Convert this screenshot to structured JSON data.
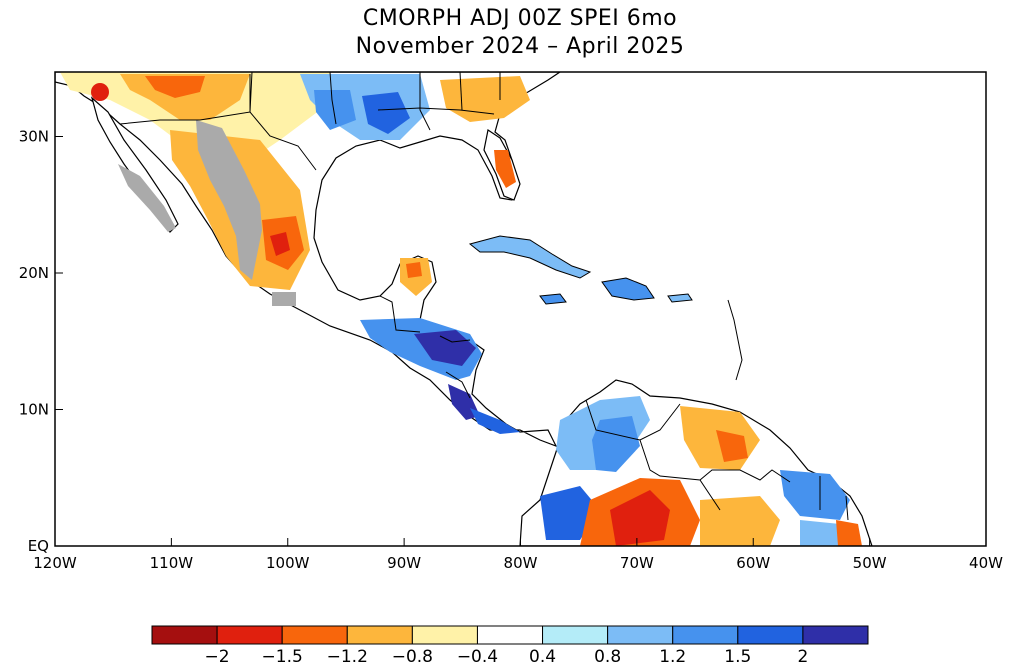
{
  "title_line1": "CMORPH ADJ 00Z SPEI 6mo",
  "title_line2": "November 2024 - April 2025",
  "lon_labels": [
    "120W",
    "110W",
    "100W",
    "90W",
    "80W",
    "70W",
    "60W",
    "50W",
    "40W"
  ],
  "lat_labels": [
    "EQ",
    "10N",
    "20N",
    "30N"
  ],
  "colorbar": {
    "colors": [
      "#a50f0f",
      "#e0200e",
      "#f8660c",
      "#fdb63c",
      "#fff2a8",
      "#ffffff",
      "#b4ecf8",
      "#7cbcf6",
      "#4692ee",
      "#2163e0",
      "#2f2fa8"
    ],
    "labels": [
      "-2",
      "-1.5",
      "-1.2",
      "-0.8",
      "-0.4",
      "0.4",
      "0.8",
      "1.2",
      "1.5",
      "2"
    ]
  },
  "colors": {
    "land_dry_strong": "#e0200e",
    "land_dry": "#fdb63c",
    "land_wet": "#4692ee",
    "land_wet_strong": "#2f2fa8",
    "missing": "#aaaaaa"
  }
}
